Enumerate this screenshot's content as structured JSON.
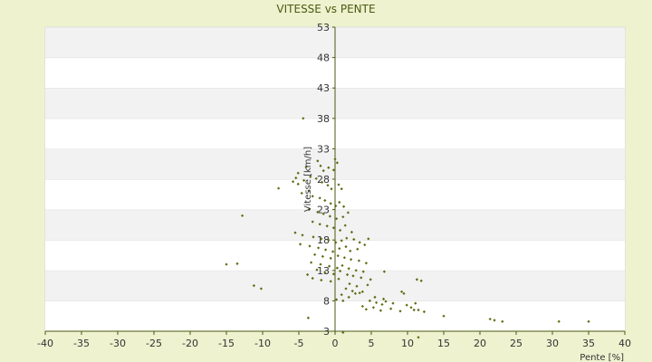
{
  "chart_data": {
    "type": "scatter",
    "title": "VITESSE vs PENTE",
    "xlabel": "Pente [%]",
    "ylabel": "Vitesse [km/h]",
    "xlim": [
      -40,
      40
    ],
    "ylim": [
      3,
      53
    ],
    "xticks": [
      -40,
      -35,
      -30,
      -25,
      -20,
      -15,
      -10,
      -5,
      0,
      5,
      10,
      15,
      20,
      25,
      30,
      35,
      40
    ],
    "yticks": [
      3,
      8,
      13,
      18,
      23,
      28,
      33,
      38,
      43,
      48,
      53
    ],
    "grid": "horizontal-bands",
    "legend": "none",
    "colors": {
      "point": "#5c6b10",
      "axis": "#4b5a12",
      "band_light": "#ffffff",
      "band_dark": "#f2f2f2",
      "background": "#eef2cf"
    },
    "points": [
      [
        -4.4,
        38.0
      ],
      [
        -2.4,
        31.0
      ],
      [
        -2.0,
        30.2
      ],
      [
        -1.6,
        29.4
      ],
      [
        -0.9,
        29.9
      ],
      [
        0.0,
        31.3
      ],
      [
        0.3,
        30.7
      ],
      [
        -0.2,
        29.5
      ],
      [
        -4.0,
        30.0
      ],
      [
        -5.1,
        29.0
      ],
      [
        -5.4,
        28.2
      ],
      [
        -5.8,
        27.6
      ],
      [
        -5.1,
        27.2
      ],
      [
        -4.3,
        27.8
      ],
      [
        -3.4,
        28.4
      ],
      [
        -2.6,
        28.1
      ],
      [
        -1.8,
        27.5
      ],
      [
        -1.0,
        27.0
      ],
      [
        -0.5,
        26.4
      ],
      [
        0.5,
        27.1
      ],
      [
        0.9,
        26.4
      ],
      [
        -3.6,
        26.1
      ],
      [
        -4.6,
        25.7
      ],
      [
        -7.8,
        26.5
      ],
      [
        -3.1,
        25.2
      ],
      [
        -2.1,
        24.9
      ],
      [
        -1.4,
        24.5
      ],
      [
        -0.6,
        24.0
      ],
      [
        0.1,
        23.6
      ],
      [
        0.6,
        24.2
      ],
      [
        1.2,
        23.5
      ],
      [
        -3.6,
        23.0
      ],
      [
        -2.4,
        22.6
      ],
      [
        -1.6,
        22.3
      ],
      [
        -0.7,
        21.9
      ],
      [
        0.2,
        21.5
      ],
      [
        1.1,
        21.8
      ],
      [
        1.8,
        22.5
      ],
      [
        -12.8,
        22.0
      ],
      [
        -3.1,
        21.0
      ],
      [
        -2.1,
        20.6
      ],
      [
        -1.1,
        20.3
      ],
      [
        -0.2,
        20.0
      ],
      [
        0.7,
        19.6
      ],
      [
        1.4,
        20.4
      ],
      [
        2.3,
        19.3
      ],
      [
        -5.5,
        19.2
      ],
      [
        -4.5,
        18.8
      ],
      [
        -3.0,
        18.5
      ],
      [
        -1.9,
        18.2
      ],
      [
        -0.9,
        18.0
      ],
      [
        0.1,
        17.6
      ],
      [
        0.9,
        17.9
      ],
      [
        1.6,
        18.3
      ],
      [
        2.6,
        18.1
      ],
      [
        3.4,
        17.6
      ],
      [
        -4.8,
        17.3
      ],
      [
        -3.5,
        17.0
      ],
      [
        -2.3,
        16.7
      ],
      [
        -1.3,
        16.4
      ],
      [
        -0.3,
        16.1
      ],
      [
        0.6,
        16.6
      ],
      [
        1.5,
        16.9
      ],
      [
        2.1,
        16.2
      ],
      [
        3.1,
        16.5
      ],
      [
        4.1,
        17.2
      ],
      [
        4.6,
        18.2
      ],
      [
        -2.8,
        15.6
      ],
      [
        -1.7,
        15.3
      ],
      [
        -0.6,
        15.0
      ],
      [
        0.4,
        15.4
      ],
      [
        1.3,
        15.1
      ],
      [
        2.2,
        14.8
      ],
      [
        3.3,
        14.6
      ],
      [
        4.3,
        14.2
      ],
      [
        -3.3,
        14.3
      ],
      [
        -2.0,
        14.0
      ],
      [
        -0.8,
        13.7
      ],
      [
        0.3,
        13.4
      ],
      [
        1.0,
        13.8
      ],
      [
        1.9,
        13.3
      ],
      [
        2.9,
        13.0
      ],
      [
        3.9,
        12.8
      ],
      [
        -15.0,
        14.0
      ],
      [
        -13.5,
        14.1
      ],
      [
        -2.5,
        13.1
      ],
      [
        -1.4,
        12.7
      ],
      [
        -0.2,
        12.4
      ],
      [
        0.7,
        12.9
      ],
      [
        1.7,
        12.3
      ],
      [
        2.5,
        12.1
      ],
      [
        3.6,
        11.8
      ],
      [
        4.9,
        11.5
      ],
      [
        -3.8,
        12.3
      ],
      [
        -3.1,
        11.7
      ],
      [
        -1.9,
        11.4
      ],
      [
        -0.6,
        11.2
      ],
      [
        0.5,
        11.6
      ],
      [
        6.8,
        12.8
      ],
      [
        11.3,
        11.5
      ],
      [
        11.9,
        11.3
      ],
      [
        2.0,
        10.8
      ],
      [
        3.0,
        10.4
      ],
      [
        4.5,
        10.6
      ],
      [
        1.5,
        10.0
      ],
      [
        2.4,
        9.6
      ],
      [
        3.4,
        9.3
      ],
      [
        -11.2,
        10.5
      ],
      [
        -10.2,
        10.0
      ],
      [
        0.9,
        9.0
      ],
      [
        1.9,
        8.6
      ],
      [
        2.8,
        9.2
      ],
      [
        3.8,
        9.5
      ],
      [
        5.5,
        8.6
      ],
      [
        6.7,
        8.3
      ],
      [
        9.2,
        9.5
      ],
      [
        9.5,
        9.2
      ],
      [
        0.2,
        8.2
      ],
      [
        1.1,
        8.0
      ],
      [
        4.8,
        8.0
      ],
      [
        5.7,
        7.7
      ],
      [
        6.5,
        7.4
      ],
      [
        7.0,
        7.9
      ],
      [
        8.0,
        7.6
      ],
      [
        9.9,
        7.3
      ],
      [
        11.1,
        7.6
      ],
      [
        3.8,
        7.1
      ],
      [
        4.3,
        6.6
      ],
      [
        5.3,
        6.9
      ],
      [
        6.3,
        6.4
      ],
      [
        7.7,
        6.7
      ],
      [
        9.0,
        6.3
      ],
      [
        10.5,
        6.9
      ],
      [
        10.9,
        6.5
      ],
      [
        11.5,
        6.5
      ],
      [
        12.3,
        6.2
      ],
      [
        15.0,
        5.5
      ],
      [
        -3.7,
        5.2
      ],
      [
        21.4,
        5.0
      ],
      [
        22.0,
        4.8
      ],
      [
        23.1,
        4.6
      ],
      [
        30.9,
        4.6
      ],
      [
        35.0,
        4.6
      ],
      [
        1.1,
        2.8
      ],
      [
        11.5,
        2.0
      ]
    ]
  }
}
